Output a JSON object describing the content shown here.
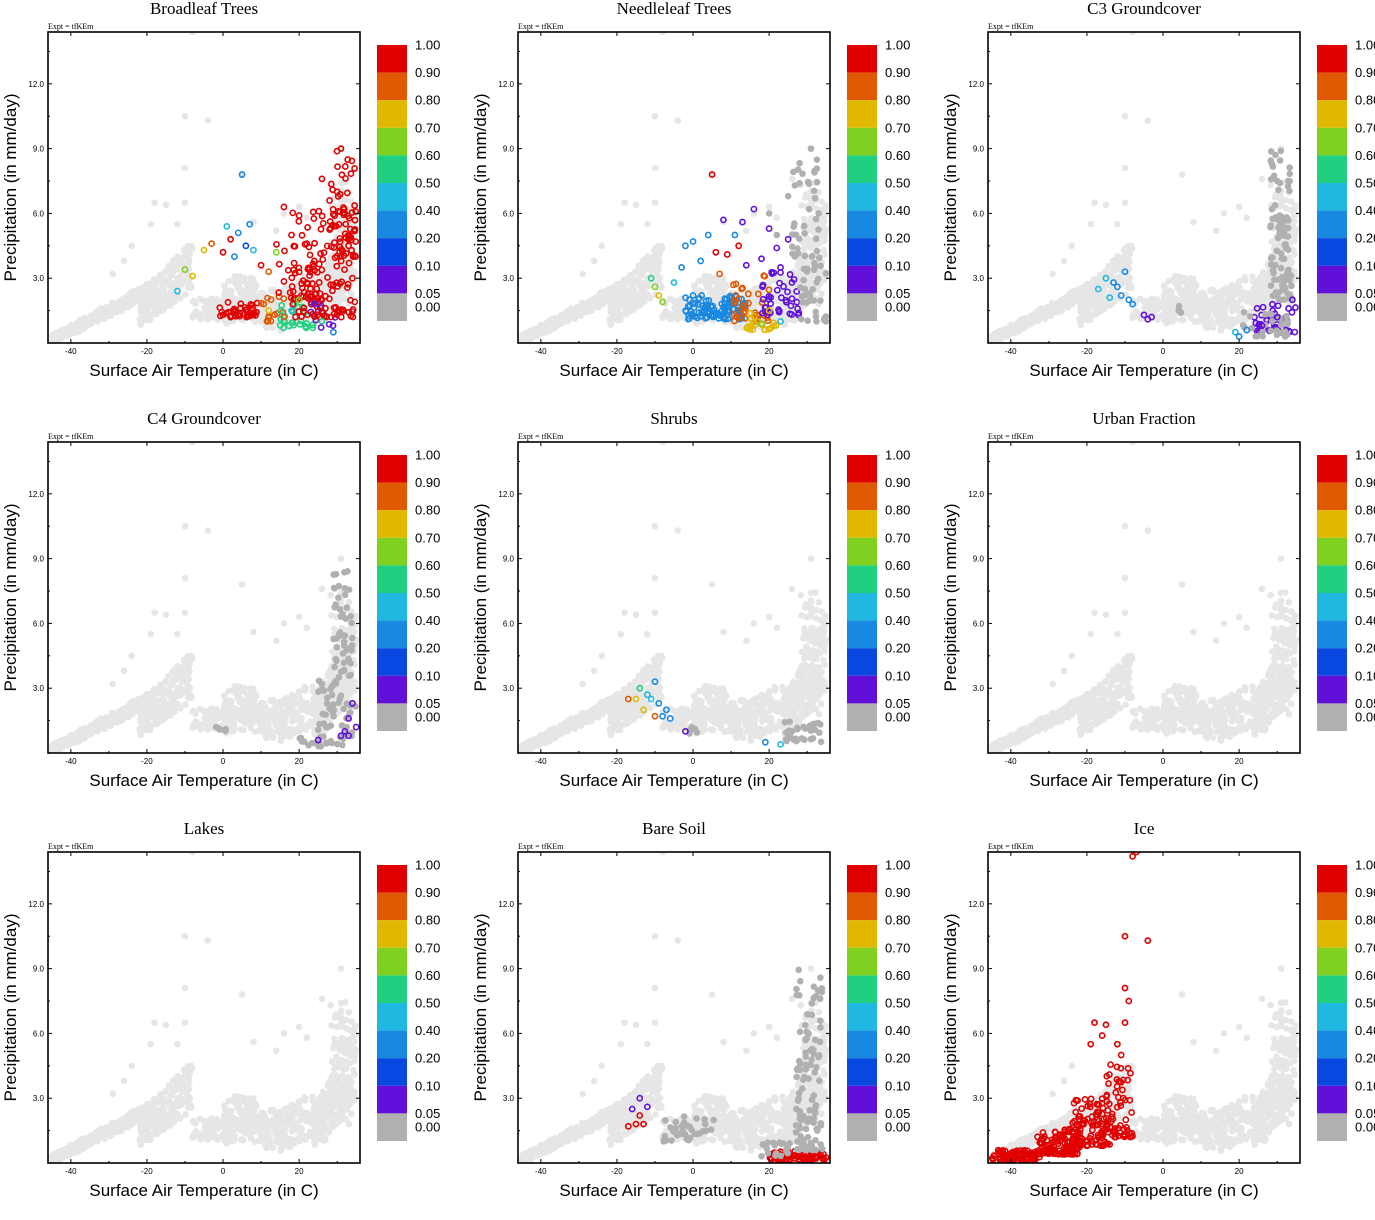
{
  "chart_data": [
    {
      "type": "scatter",
      "title": "Broadleaf Trees",
      "subtitle": "Expt = tfKEm",
      "xlabel": "Surface Air Temperature (in C)",
      "ylabel": "Precipitation (in mm/day)",
      "xlim": [
        -46,
        36
      ],
      "ylim": [
        0,
        14.4
      ],
      "xticks": [
        "-40",
        "-20",
        "0",
        "20"
      ],
      "yticks": [
        "3.0",
        "6.0",
        "9.0",
        "12.0"
      ],
      "highlight": [
        [
          -12,
          2.4,
          0.3
        ],
        [
          -10,
          3.4,
          0.6
        ],
        [
          -8,
          3.1,
          0.65
        ],
        [
          -5,
          4.3,
          0.65
        ],
        [
          -3,
          4.6,
          0.75
        ],
        [
          0,
          4.2,
          0.85
        ],
        [
          1,
          5.4,
          0.35
        ],
        [
          2,
          4.8,
          0.85
        ],
        [
          3,
          4.0,
          0.2
        ],
        [
          4,
          5.1,
          0.2
        ],
        [
          5,
          7.8,
          0.15
        ],
        [
          6,
          4.5,
          0.1
        ],
        [
          7,
          5.5,
          0.2
        ],
        [
          8,
          4.3,
          0.35
        ],
        [
          10,
          3.6,
          0.85
        ],
        [
          12,
          3.3,
          0.75
        ],
        [
          14,
          4.2,
          0.6
        ],
        [
          16,
          6.3,
          0.95
        ],
        [
          18,
          5.0,
          0.95
        ],
        [
          20,
          5.9,
          0.95
        ],
        [
          22,
          4.6,
          0.95
        ],
        [
          24,
          3.8,
          0.95
        ],
        [
          26,
          7.6,
          0.95
        ],
        [
          28,
          6.6,
          0.95
        ],
        [
          30,
          7.0,
          0.95
        ],
        [
          31,
          9.0,
          0.95
        ],
        [
          32,
          6.0,
          0.95
        ],
        [
          33,
          4.5,
          0.95
        ],
        [
          34,
          3.0,
          0.95
        ],
        [
          18,
          1.5,
          0.4
        ],
        [
          22,
          0.9,
          0.45
        ],
        [
          26,
          1.0,
          0.5
        ],
        [
          29,
          0.5,
          0.15
        ],
        [
          20,
          2.0,
          0.55
        ],
        [
          12,
          1.5,
          0.65
        ],
        [
          16,
          1.2,
          0.75
        ],
        [
          24,
          1.8,
          0.05
        ]
      ],
      "clusters": [
        [
          -1,
          10,
          1.2,
          1.9,
          0.85,
          40
        ],
        [
          10,
          16,
          1.0,
          2.6,
          0.75,
          15
        ],
        [
          15,
          24,
          0.7,
          1.8,
          0.45,
          25
        ],
        [
          22,
          30,
          0.6,
          2.0,
          0.05,
          12
        ],
        [
          18,
          35,
          1.2,
          6.2,
          0.95,
          120
        ],
        [
          28,
          35,
          4.0,
          9.0,
          0.95,
          50
        ],
        [
          14,
          25,
          2.0,
          4.8,
          0.95,
          30
        ]
      ]
    },
    {
      "type": "scatter",
      "title": "Needleleaf Trees",
      "subtitle": "Expt = tfKEm",
      "xlabel": "Surface Air Temperature (in C)",
      "ylabel": "Precipitation (in mm/day)",
      "xlim": [
        -46,
        36
      ],
      "ylim": [
        0,
        14.4
      ],
      "xticks": [
        "-40",
        "-20",
        "0",
        "20"
      ],
      "yticks": [
        "3.0",
        "6.0",
        "9.0",
        "12.0"
      ],
      "highlight": [
        [
          -11,
          3.0,
          0.45
        ],
        [
          -10,
          2.6,
          0.6
        ],
        [
          -9,
          2.2,
          0.65
        ],
        [
          -8,
          1.9,
          0.6
        ],
        [
          -5,
          2.8,
          0.3
        ],
        [
          -3,
          3.5,
          0.2
        ],
        [
          -2,
          4.5,
          0.15
        ],
        [
          0,
          4.7,
          0.2
        ],
        [
          2,
          3.8,
          0.15
        ],
        [
          4,
          5.0,
          0.15
        ],
        [
          5,
          7.8,
          0.85
        ],
        [
          6,
          4.2,
          0.85
        ],
        [
          7,
          3.2,
          0.75
        ],
        [
          8,
          5.7,
          0.05
        ],
        [
          9,
          4.1,
          0.85
        ],
        [
          11,
          5.0,
          0.15
        ],
        [
          12,
          4.5,
          0.85
        ],
        [
          13,
          5.6,
          0.05
        ],
        [
          14,
          3.6,
          0.05
        ],
        [
          16,
          6.2,
          0.05
        ],
        [
          18,
          3.9,
          0.05
        ],
        [
          20,
          5.3,
          0.05
        ],
        [
          22,
          4.4,
          0.05
        ],
        [
          23,
          3.5,
          0.05
        ],
        [
          25,
          4.8,
          0.05
        ],
        [
          26,
          2.8,
          0.05
        ],
        [
          17,
          1.0,
          0.65
        ],
        [
          20,
          1.5,
          0.7
        ],
        [
          18,
          0.9,
          0.55
        ],
        [
          23,
          1.0,
          0.4
        ],
        [
          20,
          6.0,
          0.0
        ],
        [
          22,
          5.0,
          0.0
        ],
        [
          25,
          6.8,
          0.0
        ],
        [
          28,
          7.4,
          0.0
        ],
        [
          31,
          9.0,
          0.0
        ],
        [
          33,
          6.0,
          0.0
        ]
      ],
      "clusters": [
        [
          -2,
          14,
          1.1,
          2.2,
          0.15,
          100
        ],
        [
          10,
          20,
          1.0,
          3.2,
          0.75,
          35
        ],
        [
          14,
          22,
          0.6,
          1.5,
          0.65,
          20
        ],
        [
          18,
          28,
          1.3,
          3.6,
          0.05,
          40
        ],
        [
          26,
          33,
          4.0,
          8.5,
          0.0,
          35
        ],
        [
          28,
          35,
          1.0,
          4.0,
          0.0,
          35
        ]
      ]
    },
    {
      "type": "scatter",
      "title": "C3 Groundcover",
      "subtitle": "Expt = tfKEm",
      "xlabel": "Surface Air Temperature (in C)",
      "ylabel": "Precipitation (in mm/day)",
      "xlim": [
        -46,
        36
      ],
      "ylim": [
        0,
        14.4
      ],
      "xticks": [
        "-40",
        "-20",
        "0",
        "20"
      ],
      "yticks": [
        "3.0",
        "6.0",
        "9.0",
        "12.0"
      ],
      "highlight": [
        [
          -17,
          2.5,
          0.35
        ],
        [
          -15,
          3.0,
          0.35
        ],
        [
          -14,
          2.1,
          0.35
        ],
        [
          -13,
          2.8,
          0.15
        ],
        [
          -12,
          2.6,
          0.15
        ],
        [
          -11,
          2.2,
          0.2
        ],
        [
          -10,
          3.3,
          0.15
        ],
        [
          -9,
          2.0,
          0.15
        ],
        [
          -8,
          1.8,
          0.2
        ],
        [
          -5,
          1.3,
          0.05
        ],
        [
          -4,
          1.1,
          0.05
        ],
        [
          -3,
          1.2,
          0.05
        ],
        [
          19,
          0.5,
          0.35
        ],
        [
          20,
          0.3,
          0.2
        ],
        [
          22,
          0.6,
          0.15
        ],
        [
          26,
          0.8,
          0.05
        ],
        [
          30,
          1.2,
          0.05
        ],
        [
          33,
          1.6,
          0.05
        ],
        [
          34,
          2.0,
          0.05
        ]
      ],
      "clusters": [
        [
          24,
          35,
          0.5,
          1.8,
          0.05,
          45
        ],
        [
          28,
          34,
          2.0,
          9.0,
          0.0,
          90
        ],
        [
          21,
          33,
          0.3,
          1.5,
          0.0,
          30
        ],
        [
          4,
          6,
          1.4,
          1.8,
          0.0,
          4
        ]
      ]
    },
    {
      "type": "scatter",
      "title": "C4 Groundcover",
      "subtitle": "Expt = tfKEm",
      "xlabel": "Surface Air Temperature (in C)",
      "ylabel": "Precipitation (in mm/day)",
      "xlim": [
        -46,
        36
      ],
      "ylim": [
        0,
        14.4
      ],
      "xticks": [
        "-40",
        "-20",
        "0",
        "20"
      ],
      "yticks": [
        "3.0",
        "6.0",
        "9.0",
        "12.0"
      ],
      "highlight": [
        [
          25,
          0.6,
          0.05
        ],
        [
          31,
          0.8,
          0.05
        ],
        [
          33,
          1.6,
          0.05
        ],
        [
          34,
          2.3,
          0.05
        ],
        [
          35,
          1.2,
          0.05
        ],
        [
          32,
          1.0,
          0.05
        ],
        [
          33,
          0.8,
          0.05
        ]
      ],
      "clusters": [
        [
          25,
          35,
          0.3,
          3.5,
          0.0,
          60
        ],
        [
          29,
          34,
          3.5,
          8.5,
          0.0,
          50
        ],
        [
          -2,
          2,
          1.0,
          1.4,
          0.0,
          5
        ],
        [
          19,
          26,
          0.3,
          0.7,
          0.0,
          8
        ]
      ]
    },
    {
      "type": "scatter",
      "title": "Shrubs",
      "subtitle": "Expt = tfKEm",
      "xlabel": "Surface Air Temperature (in C)",
      "ylabel": "Precipitation (in mm/day)",
      "xlim": [
        -46,
        36
      ],
      "ylim": [
        0,
        14.4
      ],
      "xticks": [
        "-40",
        "-20",
        "0",
        "20"
      ],
      "yticks": [
        "3.0",
        "6.0",
        "9.0",
        "12.0"
      ],
      "highlight": [
        [
          -17,
          2.5,
          0.75
        ],
        [
          -15,
          2.5,
          0.65
        ],
        [
          -14,
          3.0,
          0.45
        ],
        [
          -13,
          2.0,
          0.65
        ],
        [
          -12,
          2.7,
          0.35
        ],
        [
          -11,
          2.5,
          0.4
        ],
        [
          -10,
          1.7,
          0.75
        ],
        [
          -9,
          2.3,
          0.2
        ],
        [
          -8,
          1.7,
          0.15
        ],
        [
          -7,
          2.0,
          0.15
        ],
        [
          -6,
          1.6,
          0.15
        ],
        [
          -10,
          3.3,
          0.15
        ],
        [
          -2,
          1.0,
          0.05
        ],
        [
          19,
          0.5,
          0.15
        ],
        [
          23,
          0.4,
          0.35
        ]
      ],
      "clusters": [
        [
          24,
          35,
          0.5,
          1.5,
          0.0,
          30
        ],
        [
          -3,
          2,
          0.9,
          1.2,
          0.0,
          5
        ]
      ]
    },
    {
      "type": "scatter",
      "title": "Urban Fraction",
      "subtitle": "Expt = tfKEm",
      "xlabel": "Surface Air Temperature (in C)",
      "ylabel": "Precipitation (in mm/day)",
      "xlim": [
        -46,
        36
      ],
      "ylim": [
        0,
        14.4
      ],
      "xticks": [
        "-40",
        "-20",
        "0",
        "20"
      ],
      "yticks": [
        "3.0",
        "6.0",
        "9.0",
        "12.0"
      ],
      "highlight": [],
      "clusters": []
    },
    {
      "type": "scatter",
      "title": "Lakes",
      "subtitle": "Expt = tfKEm",
      "xlabel": "Surface Air Temperature (in C)",
      "ylabel": "Precipitation (in mm/day)",
      "xlim": [
        -46,
        36
      ],
      "ylim": [
        0,
        14.4
      ],
      "xticks": [
        "-40",
        "-20",
        "0",
        "20"
      ],
      "yticks": [
        "3.0",
        "6.0",
        "9.0",
        "12.0"
      ],
      "highlight": [],
      "clusters": []
    },
    {
      "type": "scatter",
      "title": "Bare Soil",
      "subtitle": "Expt = tfKEm",
      "xlabel": "Surface Air Temperature (in C)",
      "ylabel": "Precipitation (in mm/day)",
      "xlim": [
        -46,
        36
      ],
      "ylim": [
        0,
        14.4
      ],
      "xticks": [
        "-40",
        "-20",
        "0",
        "20"
      ],
      "yticks": [
        "3.0",
        "6.0",
        "9.0",
        "12.0"
      ],
      "highlight": [
        [
          -16,
          2.5,
          0.05
        ],
        [
          -15,
          1.8,
          0.95
        ],
        [
          -14,
          2.2,
          0.95
        ],
        [
          -13,
          1.8,
          0.95
        ],
        [
          -12,
          2.6,
          0.05
        ],
        [
          -17,
          1.7,
          0.95
        ],
        [
          -14,
          3.0,
          0.05
        ]
      ],
      "clusters": [
        [
          20,
          35,
          0.15,
          0.55,
          0.95,
          90
        ],
        [
          27,
          34,
          0.6,
          9.0,
          0.0,
          110
        ],
        [
          -8,
          6,
          1.0,
          2.5,
          0.0,
          40
        ],
        [
          18,
          26,
          0.3,
          1.0,
          0.0,
          20
        ]
      ]
    },
    {
      "type": "scatter",
      "title": "Ice",
      "subtitle": "Expt = tfKEm",
      "xlabel": "Surface Air Temperature (in C)",
      "ylabel": "Precipitation (in mm/day)",
      "xlim": [
        -46,
        36
      ],
      "ylim": [
        0,
        14.4
      ],
      "xticks": [
        "-40",
        "-20",
        "0",
        "20"
      ],
      "yticks": [
        "3.0",
        "6.0",
        "9.0",
        "12.0"
      ],
      "highlight": [
        [
          -8,
          14.2,
          0.95
        ],
        [
          -7,
          14.4,
          0.95
        ],
        [
          -10,
          10.5,
          0.95
        ],
        [
          -4,
          10.3,
          0.95
        ],
        [
          -10,
          8.1,
          0.95
        ],
        [
          -9,
          7.5,
          0.95
        ],
        [
          -18,
          6.5,
          0.95
        ],
        [
          -15,
          6.4,
          0.95
        ],
        [
          -10,
          6.5,
          0.95
        ],
        [
          -16,
          5.9,
          0.95
        ],
        [
          -12,
          5.5,
          0.95
        ],
        [
          -19,
          5.5,
          0.95
        ],
        [
          -11,
          5.0,
          0.95
        ]
      ],
      "clusters": [
        [
          -45,
          -32,
          0.15,
          0.6,
          0.95,
          90
        ],
        [
          -33,
          -22,
          0.4,
          1.6,
          0.95,
          110
        ],
        [
          -24,
          -14,
          0.8,
          3.0,
          0.95,
          110
        ],
        [
          -15,
          -8,
          1.2,
          4.6,
          0.95,
          60
        ]
      ]
    }
  ],
  "colorbar": {
    "labels": [
      "1.00",
      "0.90",
      "0.80",
      "0.70",
      "0.60",
      "0.50",
      "0.40",
      "0.20",
      "0.10",
      "0.05",
      "0.00"
    ],
    "colors": [
      "#e00000",
      "#e05800",
      "#e0b800",
      "#80d020",
      "#20d080",
      "#20b8e0",
      "#1888e0",
      "#0848e0",
      "#6010d8",
      "#b0b0b0"
    ]
  },
  "background_color": "#e6e6e6",
  "zero_color": "#b0b0b0"
}
